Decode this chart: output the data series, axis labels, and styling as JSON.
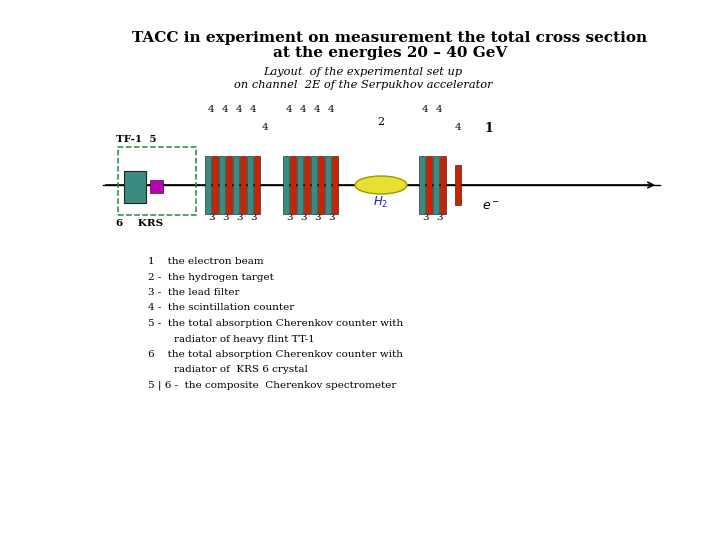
{
  "title_line1": "TACC in experiment on measurement the total cross section",
  "title_line2": "at the energies 20 – 40 GeV",
  "subtitle_line1": "Layout  of the experimental set up",
  "subtitle_line2": "on channel  2E of the Serpukhov accelerator",
  "bg_color": "#ffffff",
  "teal_color": "#3A8C80",
  "red_color": "#CC2200",
  "magenta_color": "#BB00BB",
  "yellow_fill": "#E8E030",
  "yellow_edge": "#999900",
  "blue_label_color": "#2020CC",
  "green_dash": "#228844",
  "legend_lines": [
    "1    the electron beam",
    "2 -  the hydrogen target",
    "3 -  the lead filter",
    "4 -  the scintillation counter",
    "5 -  the total absorption Cherenkov counter with",
    "        radiator of heavy flint TT-1",
    "6    the total absorption Cherenkov counter with",
    "        radiator of  KRS 6 crystal",
    "5 | 6 -  the composite  Cherenkov spectrometer"
  ]
}
